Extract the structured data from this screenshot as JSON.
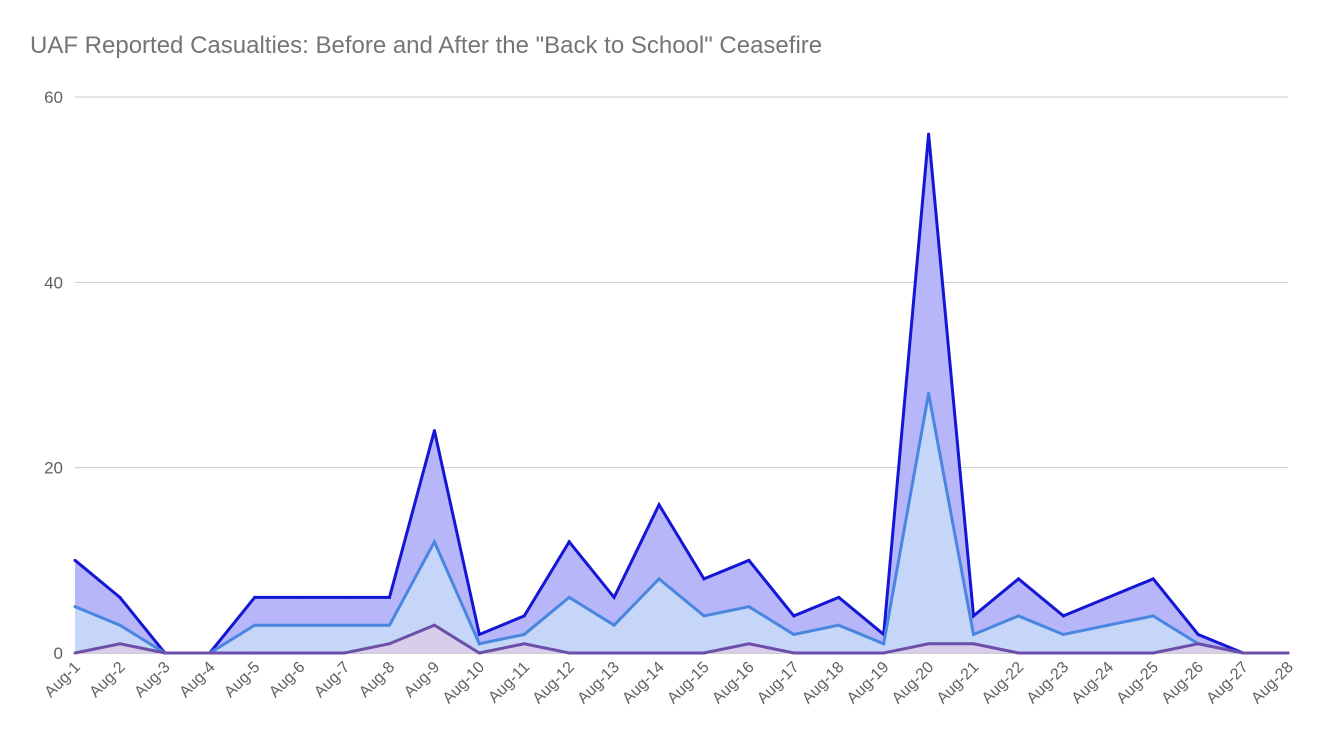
{
  "chart_data": {
    "type": "area",
    "title": "UAF Reported Casualties: Before and After the \"Back to School\" Ceasefire",
    "xlabel": "",
    "ylabel": "",
    "ylim": [
      0,
      60
    ],
    "yticks": [
      0,
      20,
      40,
      60
    ],
    "grid": true,
    "categories": [
      "Aug-1",
      "Aug-2",
      "Aug-3",
      "Aug-4",
      "Aug-5",
      "Aug-6",
      "Aug-7",
      "Aug-8",
      "Aug-9",
      "Aug-10",
      "Aug-11",
      "Aug-12",
      "Aug-13",
      "Aug-14",
      "Aug-15",
      "Aug-16",
      "Aug-17",
      "Aug-18",
      "Aug-19",
      "Aug-20",
      "Aug-21",
      "Aug-22",
      "Aug-23",
      "Aug-24",
      "Aug-25",
      "Aug-26",
      "Aug-27",
      "Aug-28"
    ],
    "series": [
      {
        "color": "#1515d6",
        "fill": "#aeaef8",
        "values": [
          10,
          6,
          0,
          0,
          6,
          6,
          6,
          6,
          24,
          2,
          4,
          12,
          6,
          16,
          8,
          10,
          4,
          6,
          2,
          56,
          4,
          8,
          4,
          6,
          8,
          2,
          0,
          0
        ]
      },
      {
        "color": "#4a86e0",
        "fill": "#c8d9f7",
        "values": [
          5,
          3,
          0,
          0,
          3,
          3,
          3,
          3,
          12,
          1,
          2,
          6,
          3,
          8,
          4,
          5,
          2,
          3,
          1,
          28,
          2,
          4,
          2,
          3,
          4,
          1,
          0,
          0
        ]
      },
      {
        "color": "#6b4fa8",
        "fill": "#d9cde9",
        "values": [
          0,
          1,
          0,
          0,
          0,
          0,
          0,
          1,
          3,
          0,
          1,
          0,
          0,
          0,
          0,
          1,
          0,
          0,
          0,
          1,
          1,
          0,
          0,
          0,
          0,
          1,
          0,
          0
        ]
      }
    ]
  }
}
